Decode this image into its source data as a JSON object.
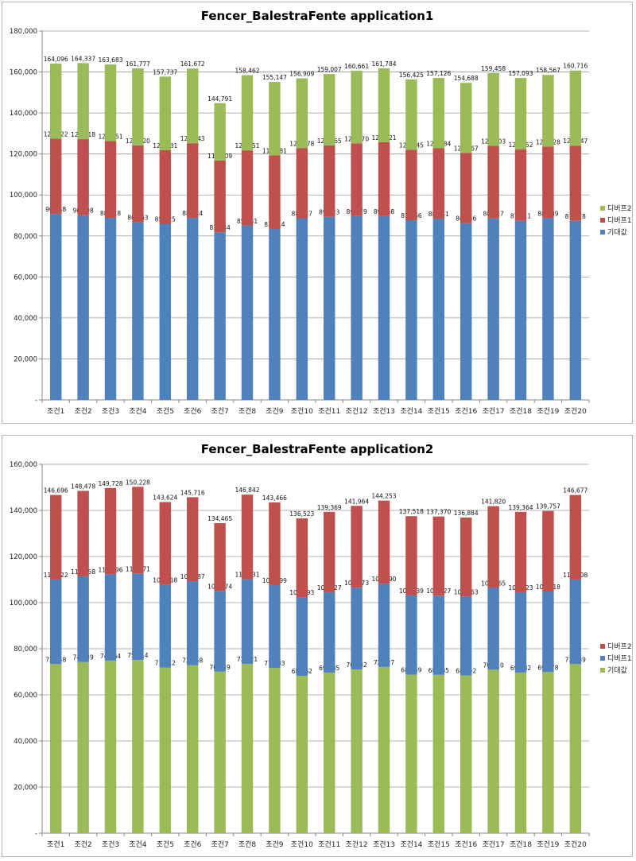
{
  "chart_data": [
    {
      "type": "bar",
      "stacked": true,
      "title": "Fencer_BalestraFente application1",
      "xlabel": "",
      "ylabel": "",
      "ylim": [
        0,
        180000
      ],
      "yticks": [
        0,
        20000,
        40000,
        60000,
        80000,
        100000,
        120000,
        140000,
        160000,
        180000
      ],
      "ytick_labels": [
        "-",
        "20,000",
        "40,000",
        "60,000",
        "80,000",
        "100,000",
        "120,000",
        "140,000",
        "160,000",
        "180,000"
      ],
      "grid": true,
      "legend_position": "right",
      "categories": [
        "조건1",
        "조건2",
        "조건3",
        "조건4",
        "조건5",
        "조건6",
        "조건7",
        "조건8",
        "조건9",
        "조건10",
        "조건11",
        "조건12",
        "조건13",
        "조건14",
        "조건15",
        "조건16",
        "조건17",
        "조건18",
        "조건19",
        "조건20"
      ],
      "series": [
        {
          "name": "기대값",
          "color": "#4f81bd",
          "values": [
            90748,
            90098,
            88818,
            86663,
            85925,
            88814,
            81784,
            85041,
            83414,
            88647,
            89323,
            89679,
            89658,
            87666,
            88441,
            86246,
            88547,
            87411,
            88689,
            87378
          ]
        },
        {
          "name": "디버프1",
          "color": "#c0504d",
          "values": [
            36674,
            37120,
            37433,
            37557,
            35906,
            36429,
            35025,
            36710,
            35867,
            34131,
            34842,
            35491,
            36063,
            34379,
            34343,
            34221,
            35456,
            34841,
            34939,
            36669
          ]
        },
        {
          "name": "디버프2",
          "color": "#9bbb59",
          "values": [
            36674,
            37119,
            37432,
            37557,
            35906,
            36429,
            27982,
            36711,
            35866,
            34131,
            34842,
            35491,
            36063,
            34380,
            34342,
            34221,
            35455,
            34841,
            34939,
            36669
          ]
        }
      ],
      "data_labels": [
        [
          "90,748",
          "90,098",
          "88,818",
          "86,663",
          "85,925",
          "88,814",
          "81,784",
          "85,041",
          "83,414",
          "88,647",
          "89,323",
          "89,679",
          "89,658",
          "87,666",
          "88,441",
          "86,246",
          "88,547",
          "87,411",
          "88,689",
          "87,378"
        ],
        [
          "127,422",
          "127,218",
          "126,251",
          "124,220",
          "121,831",
          "125,243",
          "116,809",
          "121,751",
          "119,281",
          "122,778",
          "124,165",
          "125,170",
          "125,721",
          "122,045",
          "122,784",
          "120,467",
          "124,003",
          "122,252",
          "123,628",
          "124,047"
        ],
        [
          "164,096",
          "164,337",
          "163,683",
          "161,777",
          "157,737",
          "161,672",
          "144,791",
          "158,462",
          "155,147",
          "156,909",
          "159,007",
          "160,661",
          "161,784",
          "156,425",
          "157,126",
          "154,688",
          "159,458",
          "157,093",
          "158,567",
          "160,716"
        ]
      ]
    },
    {
      "type": "bar",
      "stacked": true,
      "title": "Fencer_BalestraFente application2",
      "xlabel": "",
      "ylabel": "",
      "ylim": [
        0,
        160000
      ],
      "yticks": [
        0,
        20000,
        40000,
        60000,
        80000,
        100000,
        120000,
        140000,
        160000
      ],
      "ytick_labels": [
        "-",
        "20,000",
        "40,000",
        "60,000",
        "80,000",
        "100,000",
        "120,000",
        "140,000",
        "160,000"
      ],
      "grid": true,
      "legend_position": "right",
      "categories": [
        "조건1",
        "조건2",
        "조건3",
        "조건4",
        "조건5",
        "조건6",
        "조건7",
        "조건8",
        "조건9",
        "조건10",
        "조건11",
        "조건12",
        "조건13",
        "조건14",
        "조건15",
        "조건16",
        "조건17",
        "조건18",
        "조건19",
        "조건20"
      ],
      "series": [
        {
          "name": "기대값",
          "color": "#9bbb59",
          "values": [
            73348,
            74239,
            74864,
            75114,
            71812,
            72858,
            70049,
            73421,
            71733,
            68262,
            69685,
            70982,
            72127,
            68759,
            68685,
            68442,
            70910,
            69682,
            69878,
            73339
          ]
        },
        {
          "name": "디버프1",
          "color": "#4f81bd",
          "values": [
            36674,
            37119,
            37432,
            37557,
            35906,
            36429,
            35025,
            36710,
            35866,
            34131,
            34842,
            35491,
            36063,
            34380,
            34342,
            34221,
            35455,
            34841,
            34940,
            36669
          ]
        },
        {
          "name": "디버프2",
          "color": "#c0504d",
          "values": [
            36674,
            37120,
            37432,
            37557,
            35906,
            36429,
            29391,
            36711,
            35867,
            34130,
            34842,
            35491,
            36063,
            34379,
            34343,
            34221,
            35455,
            34841,
            34939,
            36669
          ]
        }
      ],
      "data_labels": [
        [
          "73,348",
          "74,239",
          "74,864",
          "75,114",
          "71,812",
          "72,858",
          "70,049",
          "73,421",
          "71,733",
          "68,262",
          "69,685",
          "70,982",
          "72,127",
          "68,759",
          "68,685",
          "68,442",
          "70,910",
          "69,682",
          "69,878",
          "73,339"
        ],
        [
          "110,022",
          "111,358",
          "112,296",
          "112,671",
          "107,718",
          "109,287",
          "105,074",
          "110,131",
          "107,599",
          "102,393",
          "104,527",
          "106,473",
          "108,190",
          "103,139",
          "103,027",
          "102,663",
          "106,365",
          "104,523",
          "104,818",
          "110,008"
        ],
        [
          "146,696",
          "148,478",
          "149,728",
          "150,228",
          "143,624",
          "145,716",
          "134,465",
          "146,842",
          "143,466",
          "136,523",
          "139,369",
          "141,964",
          "144,253",
          "137,518",
          "137,370",
          "136,884",
          "141,820",
          "139,364",
          "139,757",
          "146,677"
        ]
      ]
    }
  ]
}
